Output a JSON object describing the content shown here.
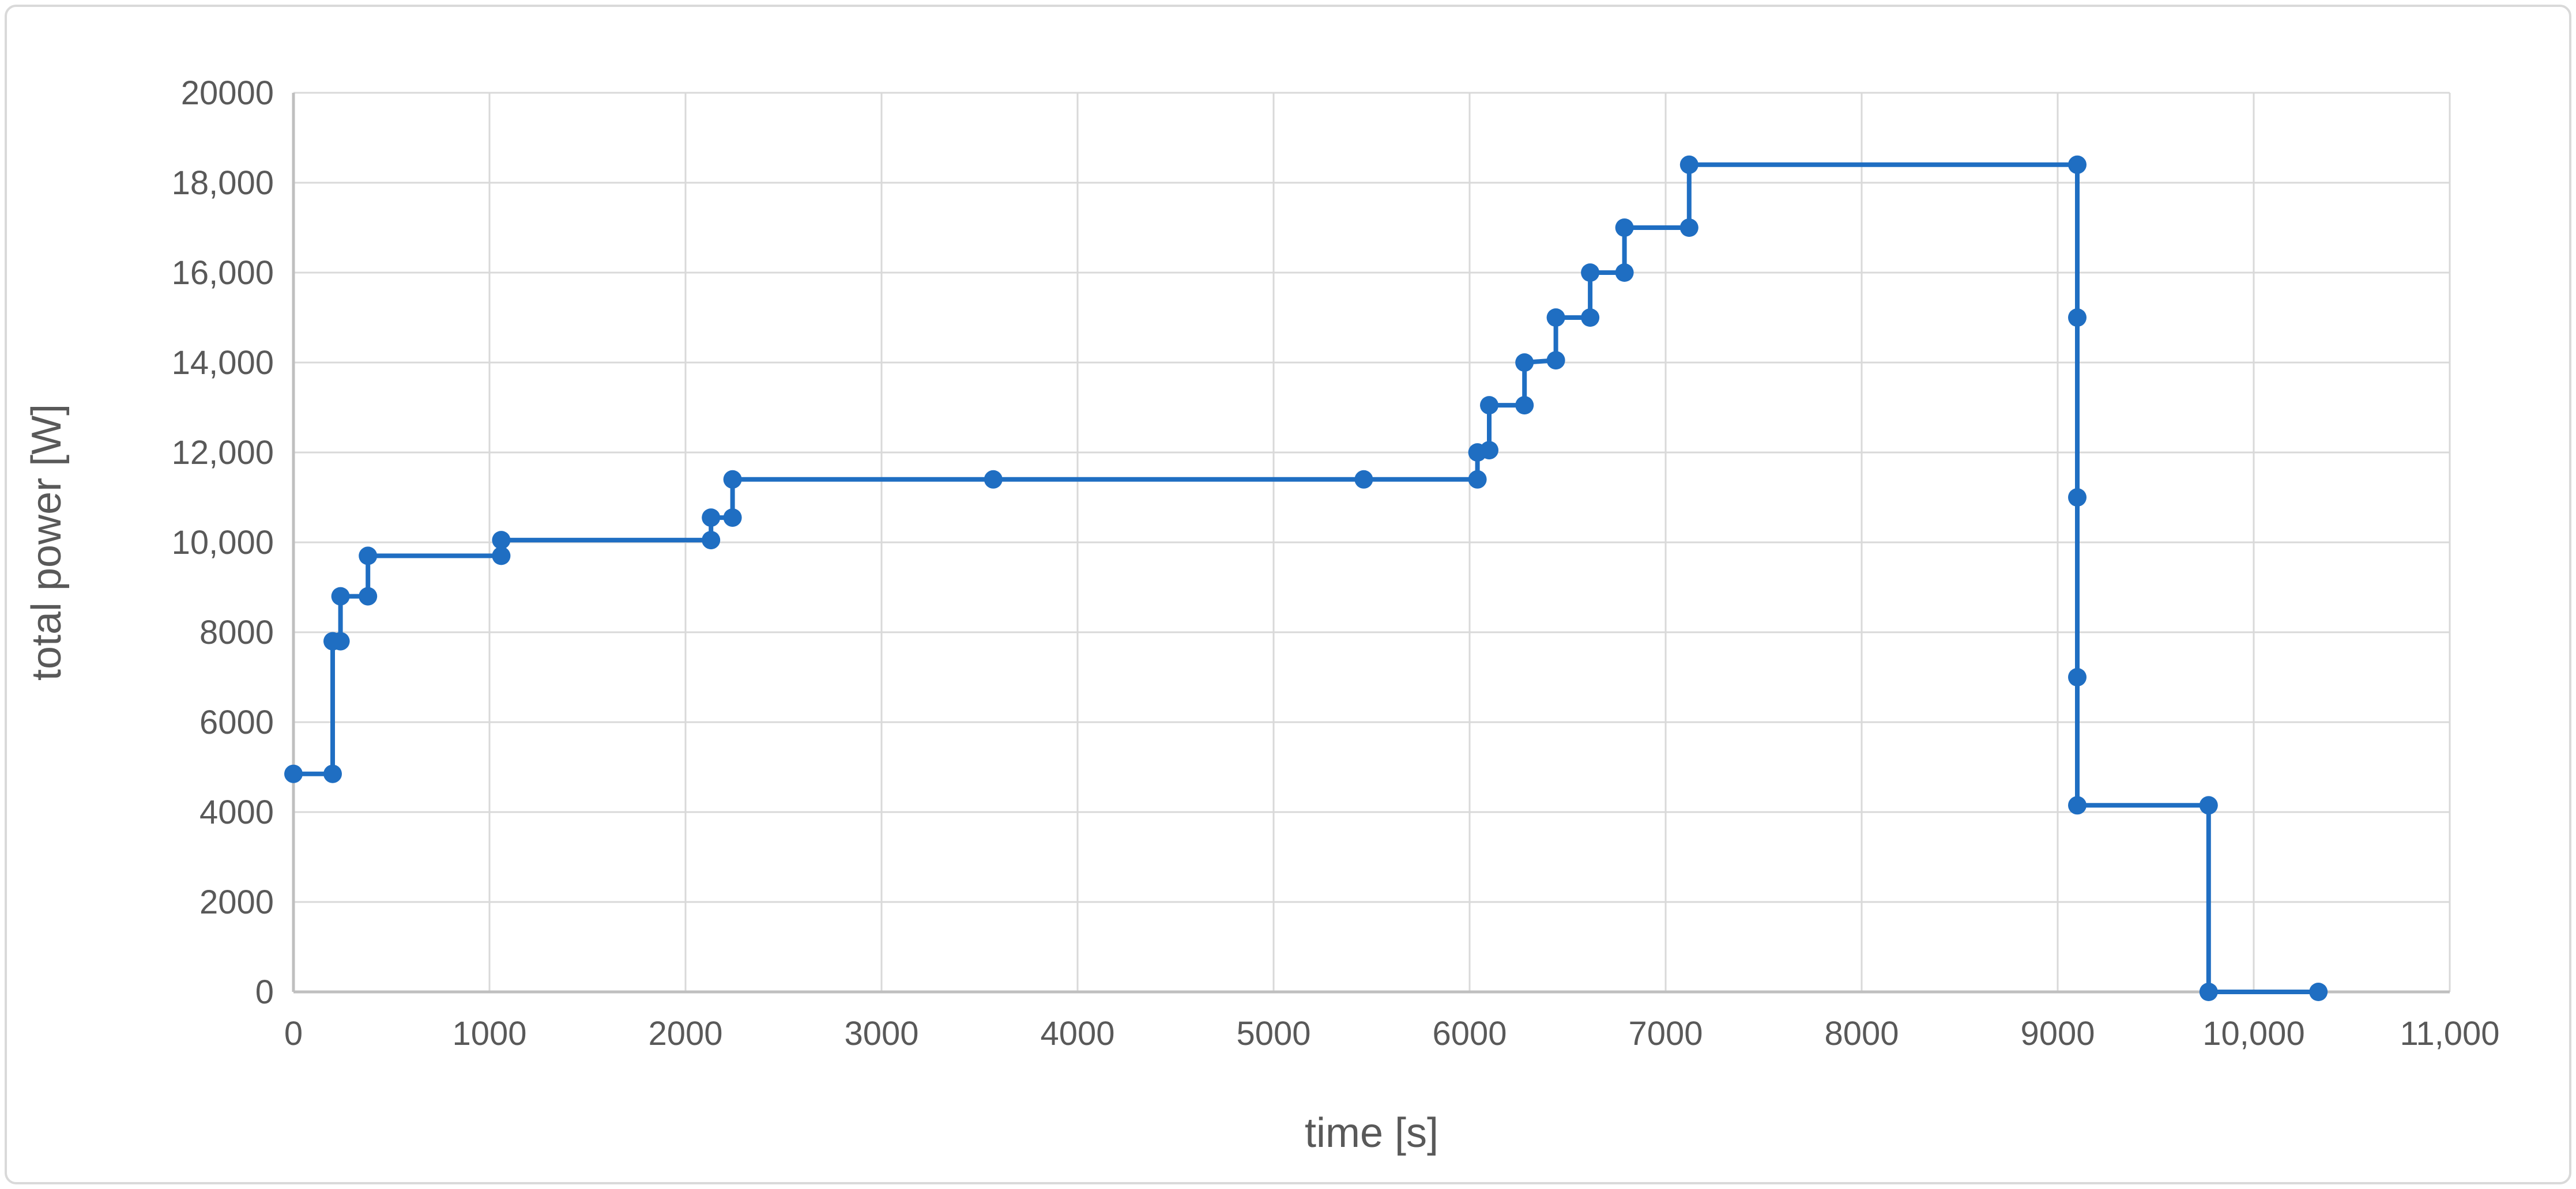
{
  "chart": {
    "background": "#ffffff",
    "border_color": "#d9d9d9",
    "gridline_color": "#d9d9d9",
    "axis_line_color": "#bfbfbf",
    "text_color": "#595959",
    "series_color": "#1f6ec2",
    "xlabel": "time [s]",
    "ylabel": "total power [W]"
  },
  "chart_data": {
    "type": "line",
    "subtype": "step-scatter-with-markers",
    "title": "",
    "xlabel": "time [s]",
    "ylabel": "total power [W]",
    "xlim": [
      0,
      11000
    ],
    "ylim": [
      0,
      20000
    ],
    "x_tick_interval": 1000,
    "y_tick_interval": 2000,
    "x_ticks": [
      0,
      1000,
      2000,
      3000,
      4000,
      5000,
      6000,
      7000,
      8000,
      9000,
      10000,
      11000
    ],
    "x_tick_labels": [
      "0",
      "1000",
      "2000",
      "3000",
      "4000",
      "5000",
      "6000",
      "7000",
      "8000",
      "9000",
      "10,000",
      "11,000"
    ],
    "y_ticks": [
      0,
      2000,
      4000,
      6000,
      8000,
      10000,
      12000,
      14000,
      16000,
      18000,
      20000
    ],
    "y_tick_labels": [
      "0",
      "2000",
      "4000",
      "6000",
      "8000",
      "10,000",
      "12,000",
      "14,000",
      "16,000",
      "18,000",
      "20000"
    ],
    "grid": true,
    "legend": "none",
    "series": [
      {
        "name": "total power",
        "color": "#1f6ec2",
        "marker": "circle",
        "points": [
          [
            0,
            4850
          ],
          [
            200,
            4850
          ],
          [
            200,
            7800
          ],
          [
            240,
            7800
          ],
          [
            240,
            8800
          ],
          [
            380,
            8800
          ],
          [
            380,
            9700
          ],
          [
            1060,
            9700
          ],
          [
            1060,
            10050
          ],
          [
            2130,
            10050
          ],
          [
            2130,
            10550
          ],
          [
            2240,
            10550
          ],
          [
            2240,
            11400
          ],
          [
            3570,
            11400
          ],
          [
            5460,
            11400
          ],
          [
            6040,
            11400
          ],
          [
            6040,
            12000
          ],
          [
            6100,
            12050
          ],
          [
            6100,
            13050
          ],
          [
            6280,
            13050
          ],
          [
            6280,
            14000
          ],
          [
            6440,
            14050
          ],
          [
            6440,
            15000
          ],
          [
            6615,
            15000
          ],
          [
            6615,
            16000
          ],
          [
            6790,
            16000
          ],
          [
            6790,
            17000
          ],
          [
            7120,
            17000
          ],
          [
            7120,
            18400
          ],
          [
            9100,
            18400
          ],
          [
            9100,
            15000
          ],
          [
            9100,
            11000
          ],
          [
            9100,
            7000
          ],
          [
            9100,
            4150
          ],
          [
            9770,
            4150
          ],
          [
            9770,
            0
          ],
          [
            10330,
            0
          ]
        ]
      }
    ]
  }
}
